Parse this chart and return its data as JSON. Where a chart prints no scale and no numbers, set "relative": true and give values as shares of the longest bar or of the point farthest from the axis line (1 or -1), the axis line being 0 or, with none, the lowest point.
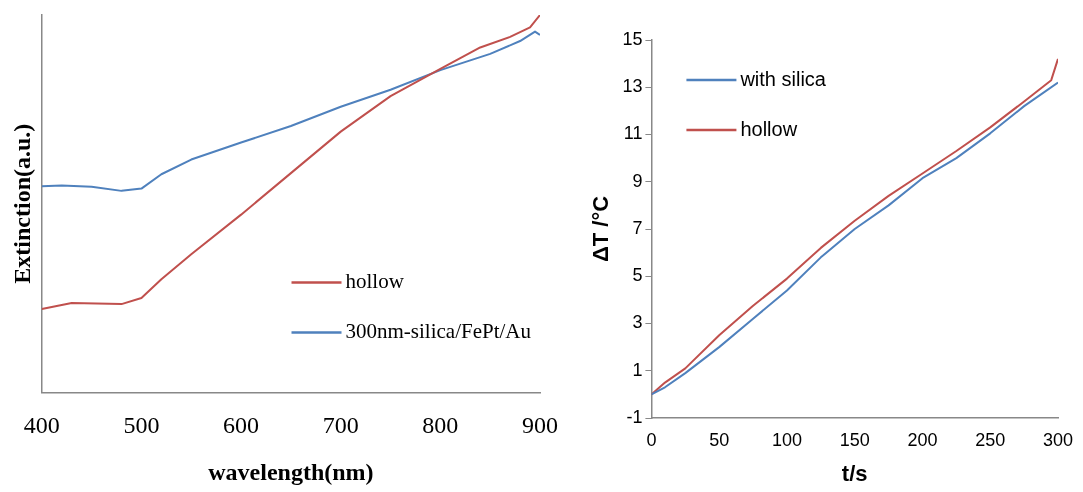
{
  "chart_data": [
    {
      "type": "line",
      "xlabel": "wavelength(nm)",
      "ylabel": "Extinction(a.u.)",
      "relative": true,
      "xlim": [
        400,
        900
      ],
      "xticks": [
        400,
        500,
        600,
        700,
        800,
        900
      ],
      "grid": false,
      "legend": "bottom right",
      "marker": "none",
      "line_style": "solid",
      "series": [
        {
          "name": "hollow",
          "color": "#c0504d",
          "x": [
            400,
            430,
            480,
            500,
            520,
            550,
            600,
            650,
            700,
            750,
            800,
            840,
            870,
            890,
            900
          ],
          "values": [
            0.221,
            0.237,
            0.234,
            0.25,
            0.3,
            0.366,
            0.471,
            0.581,
            0.691,
            0.785,
            0.857,
            0.914,
            0.942,
            0.967,
            1
          ]
        },
        {
          "name": "300nm-silica/FePt/Au",
          "color": "#4f81bd",
          "x": [
            400,
            420,
            450,
            480,
            500,
            520,
            550,
            600,
            650,
            700,
            750,
            800,
            850,
            880,
            895,
            900
          ],
          "values": [
            0.546,
            0.548,
            0.545,
            0.534,
            0.54,
            0.578,
            0.617,
            0.662,
            0.706,
            0.757,
            0.802,
            0.854,
            0.897,
            0.931,
            0.956,
            0.947
          ]
        }
      ]
    },
    {
      "type": "line",
      "xlabel": "t/s",
      "ylabel": "ΔT /°C",
      "xlim": [
        0,
        300
      ],
      "xticks": [
        0,
        50,
        100,
        150,
        200,
        250,
        300
      ],
      "ylim": [
        -1,
        15
      ],
      "yticks": [
        -1,
        1,
        3,
        5,
        7,
        9,
        11,
        13,
        15
      ],
      "grid": false,
      "legend": "top left",
      "marker": "none",
      "line_style": "solid",
      "series": [
        {
          "name": "with silica",
          "color": "#4f81bd",
          "x": [
            0,
            10,
            25,
            50,
            75,
            100,
            125,
            150,
            175,
            200,
            225,
            250,
            275,
            300
          ],
          "values": [
            0,
            0.3,
            0.9,
            2.0,
            3.2,
            4.4,
            5.8,
            7.0,
            8.0,
            9.15,
            10.0,
            11.05,
            12.2,
            13.2
          ]
        },
        {
          "name": "hollow",
          "color": "#c0504d",
          "x": [
            0,
            10,
            25,
            50,
            75,
            100,
            125,
            150,
            175,
            200,
            225,
            250,
            275,
            295,
            300
          ],
          "values": [
            0,
            0.5,
            1.1,
            2.5,
            3.75,
            4.9,
            6.2,
            7.35,
            8.4,
            9.35,
            10.3,
            11.3,
            12.4,
            13.3,
            14.2
          ]
        }
      ]
    }
  ]
}
